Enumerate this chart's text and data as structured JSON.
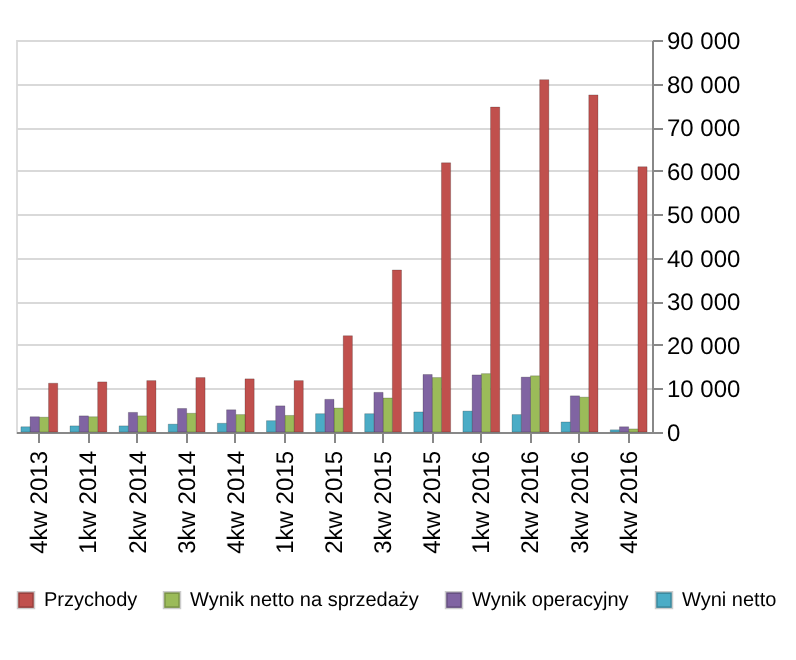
{
  "chart_data": {
    "type": "bar",
    "categories": [
      "4kw 2013",
      "1kw 2014",
      "2kw 2014",
      "3kw 2014",
      "4kw 2014",
      "1kw 2015",
      "2kw 2015",
      "3kw 2015",
      "4kw 2015",
      "1kw 2016",
      "2kw 2016",
      "3kw 2016",
      "4kw 2016"
    ],
    "series": [
      {
        "name": "Przychody",
        "color": "#c0504d",
        "values": [
          11200,
          11500,
          11800,
          12500,
          12200,
          11800,
          22100,
          37200,
          61800,
          74600,
          80900,
          77400,
          60900
        ]
      },
      {
        "name": "Wynik netto na sprzedaży",
        "color": "#9bbb59",
        "values": [
          3400,
          3500,
          3700,
          4300,
          4000,
          3800,
          5500,
          7800,
          12500,
          13400,
          12900,
          8000,
          700
        ]
      },
      {
        "name": "Wynik operacyjny",
        "color": "#8064a2",
        "values": [
          3500,
          3700,
          4500,
          5400,
          5100,
          6000,
          7500,
          9100,
          13200,
          13100,
          12600,
          8300,
          1200
        ]
      },
      {
        "name": "Wyni netto",
        "color": "#4bacc6",
        "values": [
          1200,
          1400,
          1400,
          1800,
          2000,
          2600,
          4200,
          4200,
          4600,
          4800,
          4000,
          2300,
          500
        ]
      }
    ],
    "ylim": [
      0,
      90000
    ],
    "yticks": [
      0,
      {
        "value": 10000,
        "label": "10 000"
      },
      {
        "value": 20000,
        "label": "20 000"
      },
      {
        "value": 30000,
        "label": "30 000"
      },
      {
        "value": 40000,
        "label": "40 000"
      },
      {
        "value": 50000,
        "label": "50 000"
      },
      {
        "value": 60000,
        "label": "60 000"
      },
      {
        "value": 70000,
        "label": "70 000"
      },
      {
        "value": 80000,
        "label": "80 000"
      },
      {
        "value": 90000,
        "label": "90 000"
      }
    ],
    "grid": "y",
    "legend": "bottom"
  }
}
